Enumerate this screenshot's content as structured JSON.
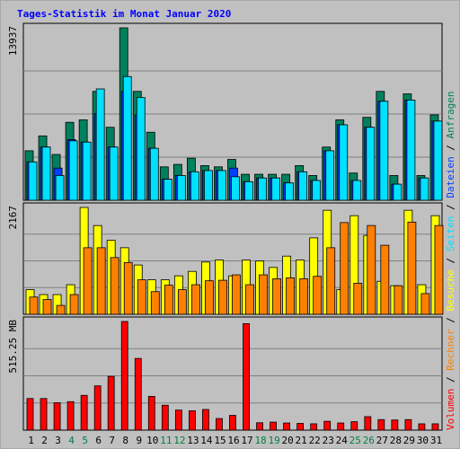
{
  "title": "Tages-Statistik im Monat Januar 2020",
  "colors": {
    "title": "#0000ff",
    "background": "#c0c0c0",
    "grid": "#808080",
    "anfragen": "#00805c",
    "dateien": "#0040ff",
    "seiten": "#00e0ff",
    "besuche": "#ffff00",
    "rechner": "#ff8000",
    "volumen": "#ff0000",
    "weekend_tick": "#008040",
    "weekday_tick": "#000000"
  },
  "chart_data": {
    "type": "bar",
    "categories": [
      "1",
      "2",
      "3",
      "4",
      "5",
      "6",
      "7",
      "8",
      "9",
      "10",
      "11",
      "12",
      "13",
      "14",
      "15",
      "16",
      "17",
      "18",
      "19",
      "20",
      "21",
      "22",
      "23",
      "24",
      "25",
      "26",
      "27",
      "28",
      "29",
      "30",
      "31"
    ],
    "weekend_days": [
      "4",
      "5",
      "11",
      "12",
      "18",
      "19",
      "25",
      "26"
    ],
    "panels": [
      {
        "id": "top",
        "axis_label": "13937",
        "ymax": 13937,
        "series": [
          {
            "name": "Anfragen",
            "color": "#00805c",
            "values": [
              4000,
              5200,
              3700,
              6300,
              6500,
              8800,
              5900,
              13937,
              8800,
              5500,
              2700,
              2900,
              3400,
              2800,
              2700,
              3300,
              2100,
              2100,
              2100,
              2100,
              2800,
              2000,
              4300,
              6500,
              2200,
              6700,
              8800,
              2000,
              8600,
              2000,
              6900
            ]
          },
          {
            "name": "Dateien",
            "color": "#0040ff",
            "values": [
              3100,
              4300,
              2600,
              4900,
              4700,
              7000,
              4300,
              8800,
              6900,
              4200,
              1700,
              2000,
              2300,
              2400,
              2400,
              2600,
              1500,
              1800,
              1800,
              1400,
              2300,
              1600,
              4000,
              6100,
              1600,
              5900,
              8000,
              1300,
              8100,
              1800,
              6400
            ]
          },
          {
            "name": "Seiten",
            "color": "#00e0ff",
            "values": [
              3100,
              4300,
              2000,
              4800,
              4700,
              9000,
              4300,
              10000,
              8300,
              4200,
              1700,
              2000,
              2300,
              2400,
              2400,
              1900,
              1500,
              1800,
              1800,
              1400,
              2300,
              1600,
              4000,
              6100,
              1600,
              5900,
              8000,
              1300,
              8100,
              1800,
              6400
            ]
          }
        ]
      },
      {
        "id": "middle",
        "axis_label": "2167",
        "ymax": 2167,
        "series": [
          {
            "name": "Besuche",
            "color": "#ffff00",
            "values": [
              500,
              400,
              400,
              600,
              2167,
              1800,
              1500,
              1350,
              1000,
              700,
              700,
              780,
              870,
              1060,
              1100,
              780,
              1100,
              1080,
              950,
              1180,
              1100,
              1550,
              2110,
              500,
              2000,
              1600,
              670,
              580,
              2110,
              600,
              2000
            ]
          },
          {
            "name": "Rechner",
            "color": "#ff8000",
            "values": [
              350,
              300,
              180,
              400,
              1350,
              1350,
              1150,
              1050,
              700,
              460,
              590,
              500,
              600,
              680,
              690,
              800,
              600,
              800,
              720,
              740,
              720,
              770,
              1350,
              1860,
              630,
              1800,
              1400,
              580,
              1870,
              420,
              1800
            ]
          }
        ]
      },
      {
        "id": "bottom",
        "axis_label": "515.25 MB",
        "ymax": 515.25,
        "series": [
          {
            "name": "Volumen",
            "color": "#ff0000",
            "values": [
              150,
              150,
              130,
              135,
              165,
              210,
              255,
              515.25,
              340,
              160,
              118,
              95,
              92,
              98,
              55,
              70,
              505,
              35,
              38,
              34,
              32,
              30,
              42,
              34,
              40,
              64,
              50,
              48,
              50,
              30,
              30
            ]
          }
        ]
      }
    ],
    "legend": [
      "Volumen",
      "Rechner",
      "Besuche",
      "Seiten",
      "Dateien",
      "Anfragen"
    ],
    "legend_placement": "right-vertical",
    "grid": true
  }
}
